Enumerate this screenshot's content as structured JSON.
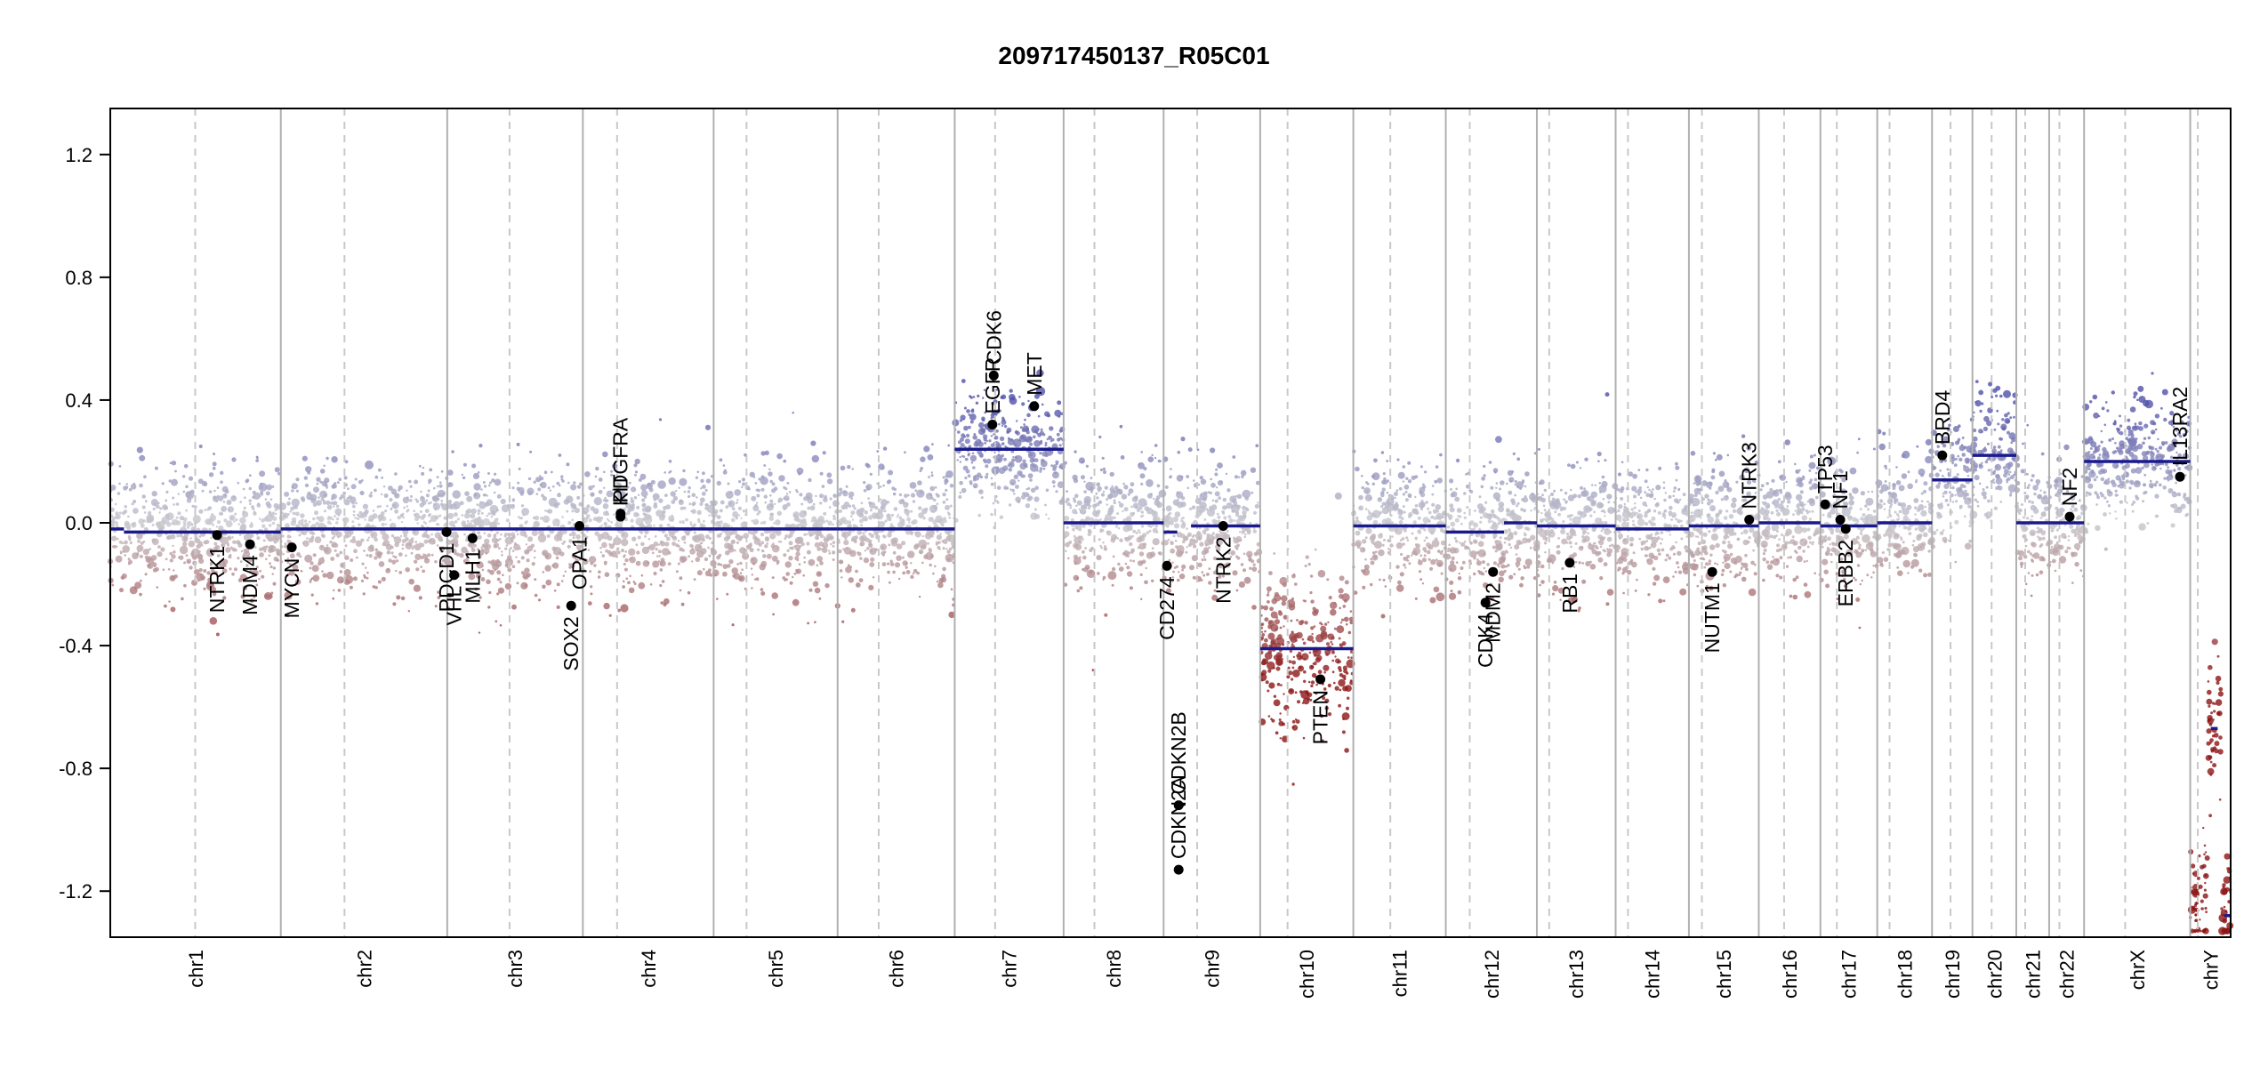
{
  "chart_data": {
    "type": "scatter",
    "title": "209717450137_R05C01",
    "xlabel": "",
    "ylabel": "",
    "ylim": [
      -1.35,
      1.35
    ],
    "yticks": [
      1.2,
      0.8,
      0.4,
      0.0,
      -0.4,
      -0.8,
      -1.2
    ],
    "ytick_labels": [
      "1.2",
      "0.8",
      "0.4",
      "0.0",
      "-0.4",
      "-0.8",
      "-1.2"
    ],
    "grid": false,
    "colors": {
      "gain": "#5a5aa8",
      "neutral": "#c8c8cc",
      "loss": "#8b1a1a",
      "segment": "#1a1a8c",
      "gene": "#000000"
    },
    "chromosomes": [
      {
        "name": "chr1",
        "length": 249,
        "centromere": 124,
        "segments": [
          [
            0,
            20,
            -0.02
          ],
          [
            20,
            249,
            -0.03
          ]
        ]
      },
      {
        "name": "chr2",
        "length": 243,
        "centromere": 93,
        "segments": [
          [
            0,
            243,
            -0.02
          ]
        ]
      },
      {
        "name": "chr3",
        "length": 198,
        "centromere": 91,
        "segments": [
          [
            0,
            198,
            -0.02
          ]
        ]
      },
      {
        "name": "chr4",
        "length": 191,
        "centromere": 50,
        "segments": [
          [
            0,
            191,
            -0.02
          ]
        ]
      },
      {
        "name": "chr5",
        "length": 181,
        "centromere": 48,
        "segments": [
          [
            0,
            181,
            -0.02
          ]
        ]
      },
      {
        "name": "chr6",
        "length": 171,
        "centromere": 60,
        "segments": [
          [
            0,
            171,
            -0.02
          ]
        ]
      },
      {
        "name": "chr7",
        "length": 159,
        "centromere": 59,
        "segments": [
          [
            0,
            159,
            0.24
          ]
        ]
      },
      {
        "name": "chr8",
        "length": 146,
        "centromere": 45,
        "segments": [
          [
            0,
            146,
            0.0
          ]
        ]
      },
      {
        "name": "chr9",
        "length": 141,
        "centromere": 49,
        "segments": [
          [
            0,
            20,
            -0.03
          ],
          [
            40,
            141,
            -0.01
          ]
        ]
      },
      {
        "name": "chr10",
        "length": 136,
        "centromere": 40,
        "segments": [
          [
            0,
            136,
            -0.41
          ]
        ]
      },
      {
        "name": "chr11",
        "length": 135,
        "centromere": 54,
        "segments": [
          [
            0,
            135,
            -0.01
          ]
        ]
      },
      {
        "name": "chr12",
        "length": 133,
        "centromere": 35,
        "segments": [
          [
            0,
            85,
            -0.03
          ],
          [
            85,
            133,
            0.0
          ]
        ]
      },
      {
        "name": "chr13",
        "length": 115,
        "centromere": 18,
        "segments": [
          [
            0,
            115,
            -0.01
          ]
        ]
      },
      {
        "name": "chr14",
        "length": 107,
        "centromere": 18,
        "segments": [
          [
            0,
            107,
            -0.02
          ]
        ]
      },
      {
        "name": "chr15",
        "length": 102,
        "centromere": 19,
        "segments": [
          [
            0,
            102,
            -0.01
          ]
        ]
      },
      {
        "name": "chr16",
        "length": 90,
        "centromere": 37,
        "segments": [
          [
            0,
            90,
            0.0
          ]
        ]
      },
      {
        "name": "chr17",
        "length": 83,
        "centromere": 24,
        "segments": [
          [
            0,
            83,
            -0.01
          ]
        ]
      },
      {
        "name": "chr18",
        "length": 80,
        "centromere": 18,
        "segments": [
          [
            0,
            80,
            0.0
          ]
        ]
      },
      {
        "name": "chr19",
        "length": 59,
        "centromere": 27,
        "segments": [
          [
            0,
            59,
            0.14
          ]
        ]
      },
      {
        "name": "chr20",
        "length": 64,
        "centromere": 28,
        "segments": [
          [
            0,
            64,
            0.22
          ]
        ]
      },
      {
        "name": "chr21",
        "length": 48,
        "centromere": 13,
        "segments": [
          [
            0,
            48,
            0.0
          ]
        ]
      },
      {
        "name": "chr22",
        "length": 51,
        "centromere": 15,
        "segments": [
          [
            0,
            51,
            0.0
          ]
        ]
      },
      {
        "name": "chrX",
        "length": 155,
        "centromere": 60,
        "segments": [
          [
            0,
            155,
            0.2
          ]
        ]
      },
      {
        "name": "chrY",
        "length": 59,
        "centromere": 11,
        "segments": [
          [
            30,
            40,
            -0.67
          ],
          [
            50,
            59,
            -1.28
          ]
        ]
      }
    ],
    "genes": [
      {
        "name": "NTRK1",
        "chr": "chr1",
        "pos": 156,
        "value": -0.04,
        "label_anchor": "end"
      },
      {
        "name": "MDM4",
        "chr": "chr1",
        "pos": 204,
        "value": -0.07,
        "label_anchor": "end"
      },
      {
        "name": "MYCN",
        "chr": "chr2",
        "pos": 16,
        "value": -0.08,
        "label_anchor": "end"
      },
      {
        "name": "PDCD1",
        "chr": "chr2",
        "pos": 242,
        "value": -0.03,
        "label_anchor": "end"
      },
      {
        "name": "VHL",
        "chr": "chr3",
        "pos": 10,
        "value": -0.17,
        "label_anchor": "end"
      },
      {
        "name": "MLH1",
        "chr": "chr3",
        "pos": 37,
        "value": -0.05,
        "label_anchor": "end"
      },
      {
        "name": "SOX2",
        "chr": "chr3",
        "pos": 181,
        "value": -0.27,
        "label_anchor": "end"
      },
      {
        "name": "OPA1",
        "chr": "chr3",
        "pos": 193,
        "value": -0.01,
        "label_anchor": "end"
      },
      {
        "name": "KIT",
        "chr": "chr4",
        "pos": 55,
        "value": 0.02,
        "label_anchor": "start"
      },
      {
        "name": "PDGFRA",
        "chr": "chr4",
        "pos": 55,
        "value": 0.03,
        "label_anchor": "start"
      },
      {
        "name": "EGFR",
        "chr": "chr7",
        "pos": 55,
        "value": 0.32,
        "label_anchor": "start"
      },
      {
        "name": "CDK6",
        "chr": "chr7",
        "pos": 57,
        "value": 0.48,
        "label_anchor": "start"
      },
      {
        "name": "MET",
        "chr": "chr7",
        "pos": 116,
        "value": 0.38,
        "label_anchor": "start"
      },
      {
        "name": "CD274",
        "chr": "chr9",
        "pos": 5,
        "value": -0.14,
        "label_anchor": "end"
      },
      {
        "name": "CDKN2A",
        "chr": "chr9",
        "pos": 21.9,
        "value": -1.13,
        "label_anchor": "start"
      },
      {
        "name": "CDKN2B",
        "chr": "chr9",
        "pos": 22.0,
        "value": -0.92,
        "label_anchor": "start"
      },
      {
        "name": "NTRK2",
        "chr": "chr9",
        "pos": 87,
        "value": -0.01,
        "label_anchor": "end"
      },
      {
        "name": "PTEN",
        "chr": "chr10",
        "pos": 88,
        "value": -0.51,
        "label_anchor": "end"
      },
      {
        "name": "CDK4",
        "chr": "chr12",
        "pos": 58,
        "value": -0.26,
        "label_anchor": "end"
      },
      {
        "name": "MDM2",
        "chr": "chr12",
        "pos": 69,
        "value": -0.16,
        "label_anchor": "end"
      },
      {
        "name": "RB1",
        "chr": "chr13",
        "pos": 48,
        "value": -0.13,
        "label_anchor": "end"
      },
      {
        "name": "NUTM1",
        "chr": "chr15",
        "pos": 34,
        "value": -0.16,
        "label_anchor": "end"
      },
      {
        "name": "NTRK3",
        "chr": "chr15",
        "pos": 88,
        "value": 0.01,
        "label_anchor": "start"
      },
      {
        "name": "TP53",
        "chr": "chr17",
        "pos": 7,
        "value": 0.06,
        "label_anchor": "start"
      },
      {
        "name": "NF1",
        "chr": "chr17",
        "pos": 29,
        "value": 0.01,
        "label_anchor": "start"
      },
      {
        "name": "ERBB2",
        "chr": "chr17",
        "pos": 37,
        "value": -0.02,
        "label_anchor": "end"
      },
      {
        "name": "BRD4",
        "chr": "chr19",
        "pos": 15,
        "value": 0.22,
        "label_anchor": "start"
      },
      {
        "name": "NF2",
        "chr": "chr22",
        "pos": 30,
        "value": 0.02,
        "label_anchor": "start"
      },
      {
        "name": "IL13RA2",
        "chr": "chrX",
        "pos": 140,
        "value": 0.15,
        "label_anchor": "start"
      }
    ]
  }
}
